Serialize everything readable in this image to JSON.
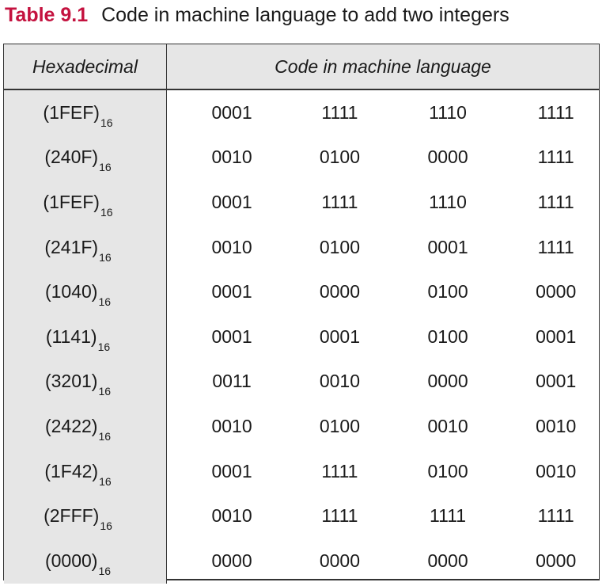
{
  "caption": {
    "label": "Table 9.1",
    "text": "Code in machine language to add two integers"
  },
  "headers": {
    "hex": "Hexadecimal",
    "code": "Code in machine language"
  },
  "rows": [
    {
      "hex": "(1FEF)",
      "base": "16",
      "bits": [
        "0001",
        "1111",
        "1110",
        "1111"
      ]
    },
    {
      "hex": "(240F)",
      "base": "16",
      "bits": [
        "0010",
        "0100",
        "0000",
        "1111"
      ]
    },
    {
      "hex": "(1FEF)",
      "base": "16",
      "bits": [
        "0001",
        "1111",
        "1110",
        "1111"
      ]
    },
    {
      "hex": "(241F)",
      "base": "16",
      "bits": [
        "0010",
        "0100",
        "0001",
        "1111"
      ]
    },
    {
      "hex": "(1040)",
      "base": "16",
      "bits": [
        "0001",
        "0000",
        "0100",
        "0000"
      ]
    },
    {
      "hex": "(1141)",
      "base": "16",
      "bits": [
        "0001",
        "0001",
        "0100",
        "0001"
      ]
    },
    {
      "hex": "(3201)",
      "base": "16",
      "bits": [
        "0011",
        "0010",
        "0000",
        "0001"
      ]
    },
    {
      "hex": "(2422)",
      "base": "16",
      "bits": [
        "0010",
        "0100",
        "0010",
        "0010"
      ]
    },
    {
      "hex": "(1F42)",
      "base": "16",
      "bits": [
        "0001",
        "1111",
        "0100",
        "0010"
      ]
    },
    {
      "hex": "(2FFF)",
      "base": "16",
      "bits": [
        "0010",
        "1111",
        "1111",
        "1111"
      ]
    },
    {
      "hex": "(0000)",
      "base": "16",
      "bits": [
        "0000",
        "0000",
        "0000",
        "0000"
      ]
    }
  ]
}
